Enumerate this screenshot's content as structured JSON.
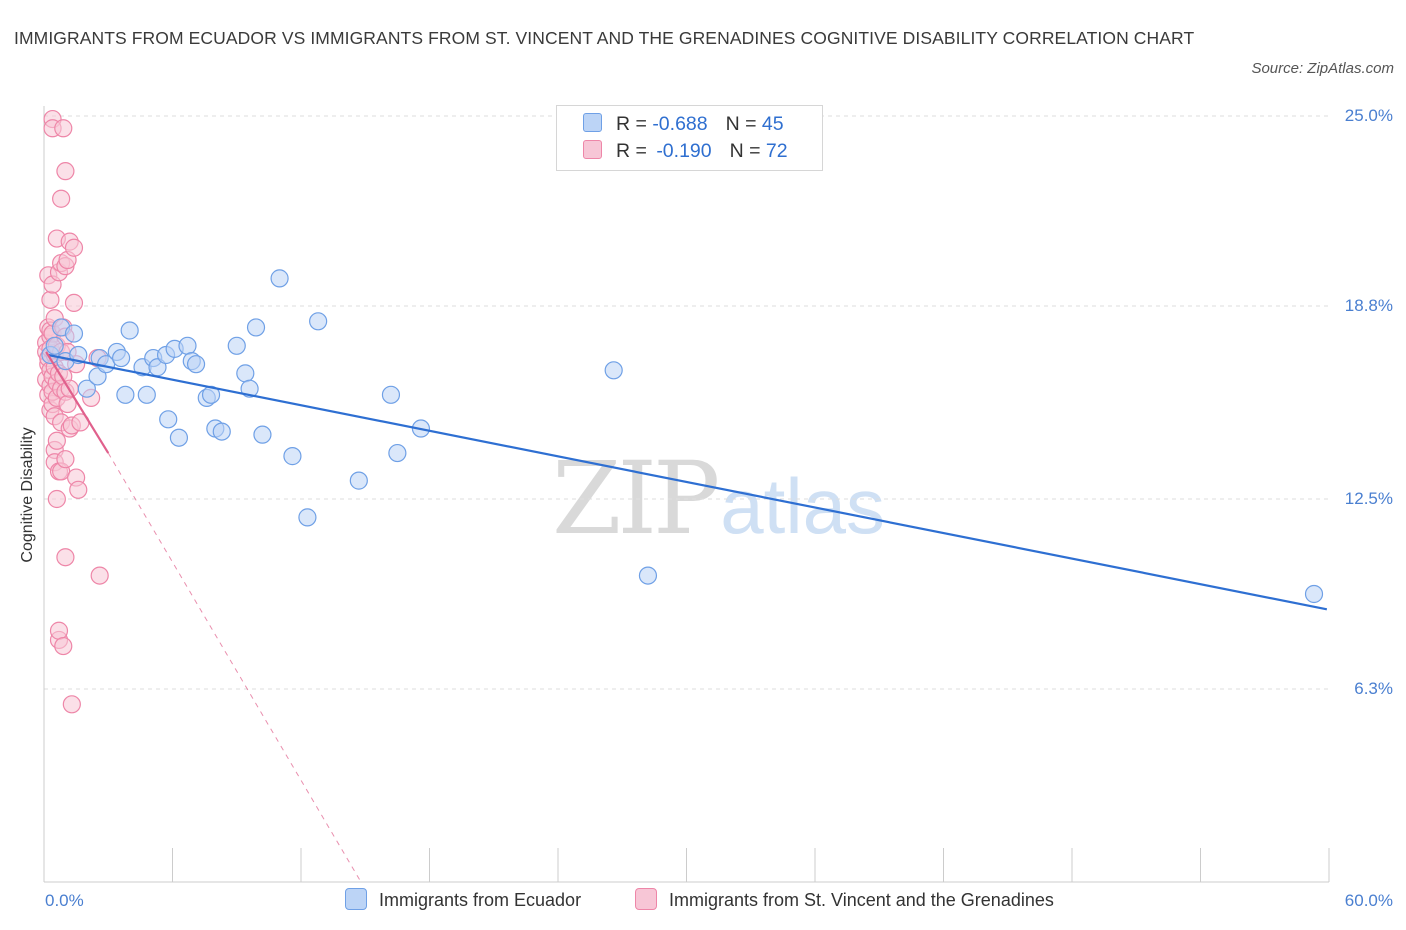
{
  "title": "IMMIGRANTS FROM ECUADOR VS IMMIGRANTS FROM ST. VINCENT AND THE GRENADINES COGNITIVE DISABILITY CORRELATION CHART",
  "source": "Source: ZipAtlas.com",
  "watermark": {
    "zip": "ZIP",
    "atlas": "atlas"
  },
  "colors": {
    "blue": "#6fa0e6",
    "blue_fill": "#bcd4f6",
    "blue_line": "#2e6fd2",
    "pink": "#ee86a8",
    "pink_fill": "#f7c6d6",
    "pink_line": "#e0608c",
    "tick_text": "#4a7fd0"
  },
  "legend": {
    "rows": [
      {
        "r_label": "R = ",
        "r_value": "-0.688",
        "n_label": "N = ",
        "n_value": "45"
      },
      {
        "r_label": "R = ",
        "r_value": "-0.190",
        "n_label": "N = ",
        "n_value": "72"
      }
    ]
  },
  "chart_data": {
    "type": "scatter",
    "title": "IMMIGRANTS FROM ECUADOR VS IMMIGRANTS FROM ST. VINCENT AND THE GRENADINES COGNITIVE DISABILITY CORRELATION CHART",
    "xlabel": "",
    "ylabel": "Cognitive Disability",
    "xlim": [
      0,
      60
    ],
    "ylim": [
      0,
      25
    ],
    "x_tick_labels": [
      "0.0%",
      "60.0%"
    ],
    "y_ticks": [
      6.3,
      12.5,
      18.8,
      25.0
    ],
    "y_tick_labels": [
      "6.3%",
      "12.5%",
      "18.8%",
      "25.0%"
    ],
    "grid": true,
    "legend_position": "top-center",
    "series": [
      {
        "name": "Immigrants from Ecuador",
        "color": "#6fa0e6",
        "r": -0.688,
        "n": 45,
        "trend": {
          "x": [
            0.2,
            59.9
          ],
          "y": [
            17.2,
            8.9
          ]
        },
        "points": [
          [
            0.3,
            17.2
          ],
          [
            0.5,
            17.5
          ],
          [
            0.8,
            18.1
          ],
          [
            1.0,
            17.0
          ],
          [
            1.4,
            17.9
          ],
          [
            1.6,
            17.2
          ],
          [
            2.0,
            16.1
          ],
          [
            2.5,
            16.5
          ],
          [
            2.6,
            17.1
          ],
          [
            2.9,
            16.9
          ],
          [
            3.4,
            17.3
          ],
          [
            3.6,
            17.1
          ],
          [
            3.8,
            15.9
          ],
          [
            4.0,
            18.0
          ],
          [
            4.6,
            16.8
          ],
          [
            4.8,
            15.9
          ],
          [
            5.1,
            17.1
          ],
          [
            5.3,
            16.8
          ],
          [
            5.7,
            17.2
          ],
          [
            5.8,
            15.1
          ],
          [
            6.1,
            17.4
          ],
          [
            6.3,
            14.5
          ],
          [
            6.7,
            17.5
          ],
          [
            6.9,
            17.0
          ],
          [
            7.1,
            16.9
          ],
          [
            7.6,
            15.8
          ],
          [
            7.8,
            15.9
          ],
          [
            8.0,
            14.8
          ],
          [
            8.3,
            14.7
          ],
          [
            9.0,
            17.5
          ],
          [
            9.4,
            16.6
          ],
          [
            9.6,
            16.1
          ],
          [
            9.9,
            18.1
          ],
          [
            10.2,
            14.6
          ],
          [
            11.0,
            19.7
          ],
          [
            11.6,
            13.9
          ],
          [
            12.3,
            11.9
          ],
          [
            12.8,
            18.3
          ],
          [
            14.7,
            13.1
          ],
          [
            16.2,
            15.9
          ],
          [
            16.5,
            14.0
          ],
          [
            17.6,
            14.8
          ],
          [
            26.6,
            16.7
          ],
          [
            28.2,
            10.0
          ],
          [
            59.3,
            9.4
          ]
        ]
      },
      {
        "name": "Immigrants from St. Vincent and the Grenadines",
        "color": "#ee86a8",
        "r": -0.19,
        "n": 72,
        "trend": {
          "x": [
            0.1,
            3.0
          ],
          "y": [
            17.3,
            14.0
          ]
        },
        "trend_dashed": {
          "x": [
            3.0,
            14.8
          ],
          "y": [
            14.0,
            0.0
          ]
        },
        "points": [
          [
            0.1,
            17.6
          ],
          [
            0.1,
            16.4
          ],
          [
            0.1,
            17.3
          ],
          [
            0.2,
            19.8
          ],
          [
            0.2,
            16.9
          ],
          [
            0.2,
            18.1
          ],
          [
            0.2,
            15.9
          ],
          [
            0.2,
            17.1
          ],
          [
            0.3,
            19.0
          ],
          [
            0.3,
            16.2
          ],
          [
            0.3,
            17.8
          ],
          [
            0.3,
            15.4
          ],
          [
            0.3,
            16.7
          ],
          [
            0.3,
            18.0
          ],
          [
            0.3,
            17.4
          ],
          [
            0.4,
            24.9
          ],
          [
            0.4,
            24.6
          ],
          [
            0.4,
            19.5
          ],
          [
            0.4,
            16.5
          ],
          [
            0.4,
            15.6
          ],
          [
            0.4,
            17.9
          ],
          [
            0.4,
            16.0
          ],
          [
            0.5,
            17.2
          ],
          [
            0.5,
            15.2
          ],
          [
            0.5,
            16.8
          ],
          [
            0.5,
            14.1
          ],
          [
            0.5,
            13.7
          ],
          [
            0.5,
            18.4
          ],
          [
            0.6,
            12.5
          ],
          [
            0.6,
            21.0
          ],
          [
            0.6,
            16.3
          ],
          [
            0.6,
            17.5
          ],
          [
            0.6,
            15.8
          ],
          [
            0.6,
            14.4
          ],
          [
            0.7,
            13.4
          ],
          [
            0.7,
            19.9
          ],
          [
            0.7,
            16.6
          ],
          [
            0.7,
            7.9
          ],
          [
            0.7,
            8.2
          ],
          [
            0.8,
            22.3
          ],
          [
            0.8,
            20.2
          ],
          [
            0.8,
            16.1
          ],
          [
            0.8,
            17.3
          ],
          [
            0.8,
            15.0
          ],
          [
            0.8,
            13.4
          ],
          [
            0.9,
            24.6
          ],
          [
            0.9,
            18.1
          ],
          [
            0.9,
            16.5
          ],
          [
            0.9,
            7.7
          ],
          [
            1.0,
            23.2
          ],
          [
            1.0,
            20.1
          ],
          [
            1.0,
            17.8
          ],
          [
            1.0,
            16.0
          ],
          [
            1.0,
            13.8
          ],
          [
            1.0,
            10.6
          ],
          [
            1.1,
            20.3
          ],
          [
            1.1,
            17.3
          ],
          [
            1.1,
            15.6
          ],
          [
            1.2,
            20.9
          ],
          [
            1.2,
            16.1
          ],
          [
            1.2,
            14.8
          ],
          [
            1.3,
            5.8
          ],
          [
            1.3,
            14.9
          ],
          [
            1.4,
            20.7
          ],
          [
            1.4,
            18.9
          ],
          [
            1.5,
            16.9
          ],
          [
            1.5,
            13.2
          ],
          [
            1.6,
            12.8
          ],
          [
            1.7,
            15.0
          ],
          [
            2.2,
            15.8
          ],
          [
            2.5,
            17.1
          ],
          [
            2.6,
            10.0
          ]
        ]
      }
    ]
  },
  "bottom_legend": {
    "items": [
      {
        "label": "Immigrants from Ecuador"
      },
      {
        "label": "Immigrants from St. Vincent and the Grenadines"
      }
    ]
  }
}
